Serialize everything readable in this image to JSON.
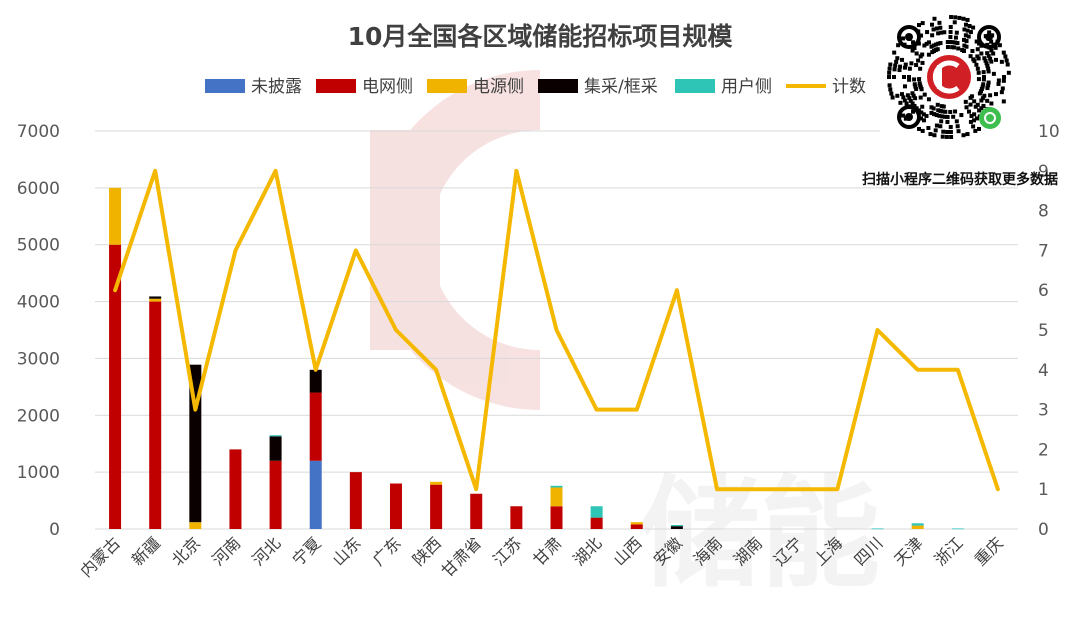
{
  "chart_data": {
    "type": "bar",
    "title": "10月全国各区域储能招标项目规模",
    "categories": [
      "内蒙古",
      "新疆",
      "北京",
      "河南",
      "河北",
      "宁夏",
      "山东",
      "广东",
      "陕西",
      "甘肃省",
      "江苏",
      "甘肃",
      "湖北",
      "山西",
      "安徽",
      "海南",
      "湖南",
      "辽宁",
      "上海",
      "四川",
      "天津",
      "浙江",
      "重庆"
    ],
    "series": [
      {
        "name": "未披露",
        "color": "#4472C4",
        "values": [
          0,
          0,
          0,
          0,
          0,
          1200,
          0,
          0,
          0,
          0,
          0,
          0,
          0,
          0,
          0,
          0,
          0,
          0,
          0,
          0,
          0,
          0,
          0
        ]
      },
      {
        "name": "电网侧",
        "color": "#C00000",
        "values": [
          5000,
          4000,
          0,
          1400,
          1200,
          1200,
          1000,
          800,
          780,
          620,
          400,
          400,
          200,
          80,
          0,
          0,
          0,
          0,
          0,
          0,
          0,
          0,
          0
        ]
      },
      {
        "name": "电源侧",
        "color": "#F0B400",
        "values": [
          1000,
          50,
          120,
          0,
          0,
          0,
          0,
          0,
          50,
          0,
          0,
          330,
          0,
          40,
          0,
          0,
          0,
          0,
          0,
          0,
          60,
          0,
          0
        ]
      },
      {
        "name": "集采/框采",
        "color": "#0A0000",
        "values": [
          0,
          40,
          2770,
          0,
          430,
          400,
          0,
          0,
          0,
          0,
          0,
          0,
          0,
          0,
          50,
          0,
          0,
          0,
          0,
          0,
          0,
          0,
          0
        ]
      },
      {
        "name": "用户侧",
        "color": "#2EC4B6",
        "values": [
          0,
          0,
          0,
          0,
          20,
          0,
          0,
          0,
          0,
          0,
          0,
          30,
          200,
          0,
          20,
          0,
          0,
          0,
          0,
          10,
          40,
          10,
          0
        ]
      },
      {
        "name": "计数",
        "type": "line",
        "color": "#F5B800",
        "axis": "right",
        "values": [
          6,
          9,
          3,
          7,
          9,
          4,
          7,
          5,
          4,
          1,
          9,
          5,
          3,
          3,
          6,
          1,
          1,
          1,
          1,
          5,
          4,
          4,
          1
        ]
      }
    ],
    "y_left": {
      "min": 0,
      "max": 7000,
      "ticks": [
        0,
        1000,
        2000,
        3000,
        4000,
        5000,
        6000,
        7000
      ]
    },
    "y_right": {
      "min": 0,
      "max": 10,
      "ticks": [
        0,
        1,
        2,
        3,
        4,
        5,
        6,
        7,
        8,
        9,
        10
      ]
    },
    "grid": true,
    "legend": "top"
  },
  "qr_caption": "扫描小程序二维码获取更多数据",
  "watermark_text": "储能",
  "colors": {
    "grid": "#D9D9D9",
    "axis_text": "#595959",
    "watermark": "#F3D9D9"
  }
}
